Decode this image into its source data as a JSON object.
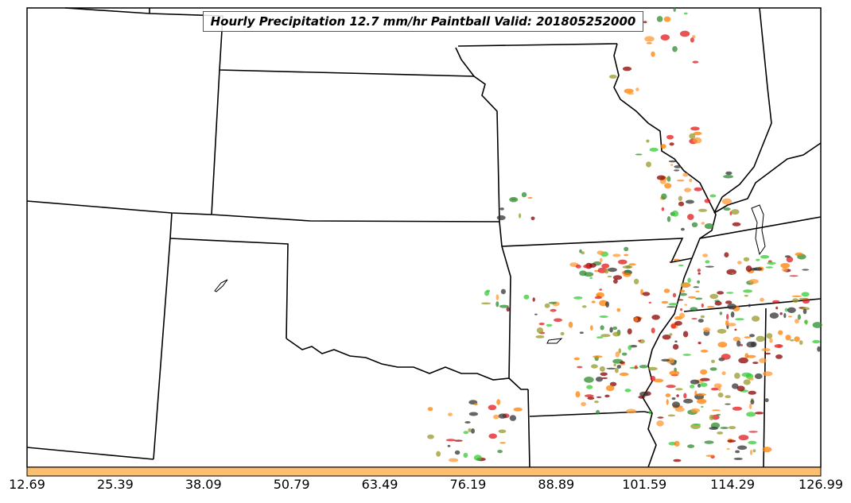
{
  "chart_data": {
    "type": "heatmap",
    "title": "Hourly Precipitation 12.7 mm/hr Paintball Valid: 201805252000",
    "colorbar": {
      "ticks": [
        "12.69",
        "25.39",
        "38.09",
        "50.79",
        "63.49",
        "76.19",
        "88.89",
        "101.59",
        "114.29",
        "126.99"
      ],
      "range": [
        12.69,
        126.99
      ],
      "color": "#fdbf6f"
    },
    "member_colors": [
      "#e31a1c",
      "#ff7f00",
      "#33cc33",
      "#2d8a2d",
      "#8b0000",
      "#9a9a2a",
      "#ff9933",
      "#333333"
    ]
  }
}
